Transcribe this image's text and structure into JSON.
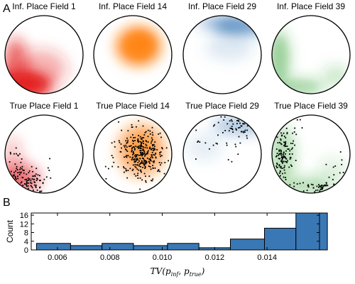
{
  "panel_labels": {
    "a": "A",
    "b": "B"
  },
  "panels": {
    "inferred_row": [
      {
        "title": "Inf. Place Field 1",
        "color": "#e41a1c",
        "peak": "bottom-left"
      },
      {
        "title": "Inf. Place Field 14",
        "color": "#ff7f0e",
        "peak": "center"
      },
      {
        "title": "Inf. Place Field 29",
        "color": "#3a78b5",
        "peak": "top-right rim"
      },
      {
        "title": "Inf. Place Field 39",
        "color": "#2ca02c",
        "peak": "left rim"
      }
    ],
    "true_row": [
      {
        "title": "True Place Field 1",
        "color": "#e41a1c",
        "spikes": "black dots, bottom-left"
      },
      {
        "title": "True Place Field 14",
        "color": "#ff7f0e",
        "spikes": "black dots, center"
      },
      {
        "title": "True Place Field 29",
        "color": "#3a78b5",
        "spikes": "black dots, top-right rim"
      },
      {
        "title": "True Place Field 39",
        "color": "#2ca02c",
        "spikes": "black dots, left and bottom rim"
      }
    ]
  },
  "chart_data": {
    "type": "bar",
    "bin_edges": [
      0.0052,
      0.0065,
      0.0077,
      0.0089,
      0.0102,
      0.0114,
      0.0126,
      0.0139,
      0.0151,
      0.0163
    ],
    "counts": [
      3,
      2,
      3,
      2,
      3,
      1,
      5,
      10,
      17
    ],
    "bar_color": "#3a78b5",
    "xlim": [
      0.005,
      0.016
    ],
    "ylim": [
      0,
      17
    ],
    "xticks": [
      0.006,
      0.008,
      0.01,
      0.012,
      0.014
    ],
    "xtick_labels": [
      "0.006",
      "0.008",
      "0.010",
      "0.012",
      "0.014"
    ],
    "yticks": [
      0,
      4,
      8,
      12,
      16
    ],
    "ytick_labels": [
      "0",
      "4",
      "8",
      "12",
      "16"
    ],
    "ylabel": "Count",
    "xlabel": "TV(p_inf, p_true)",
    "xlabel_parts": {
      "func": "TV(",
      "p1": "p",
      "s1": "inf",
      "sep": ", ",
      "p2": "p",
      "s2": "true",
      "close": ")"
    }
  }
}
